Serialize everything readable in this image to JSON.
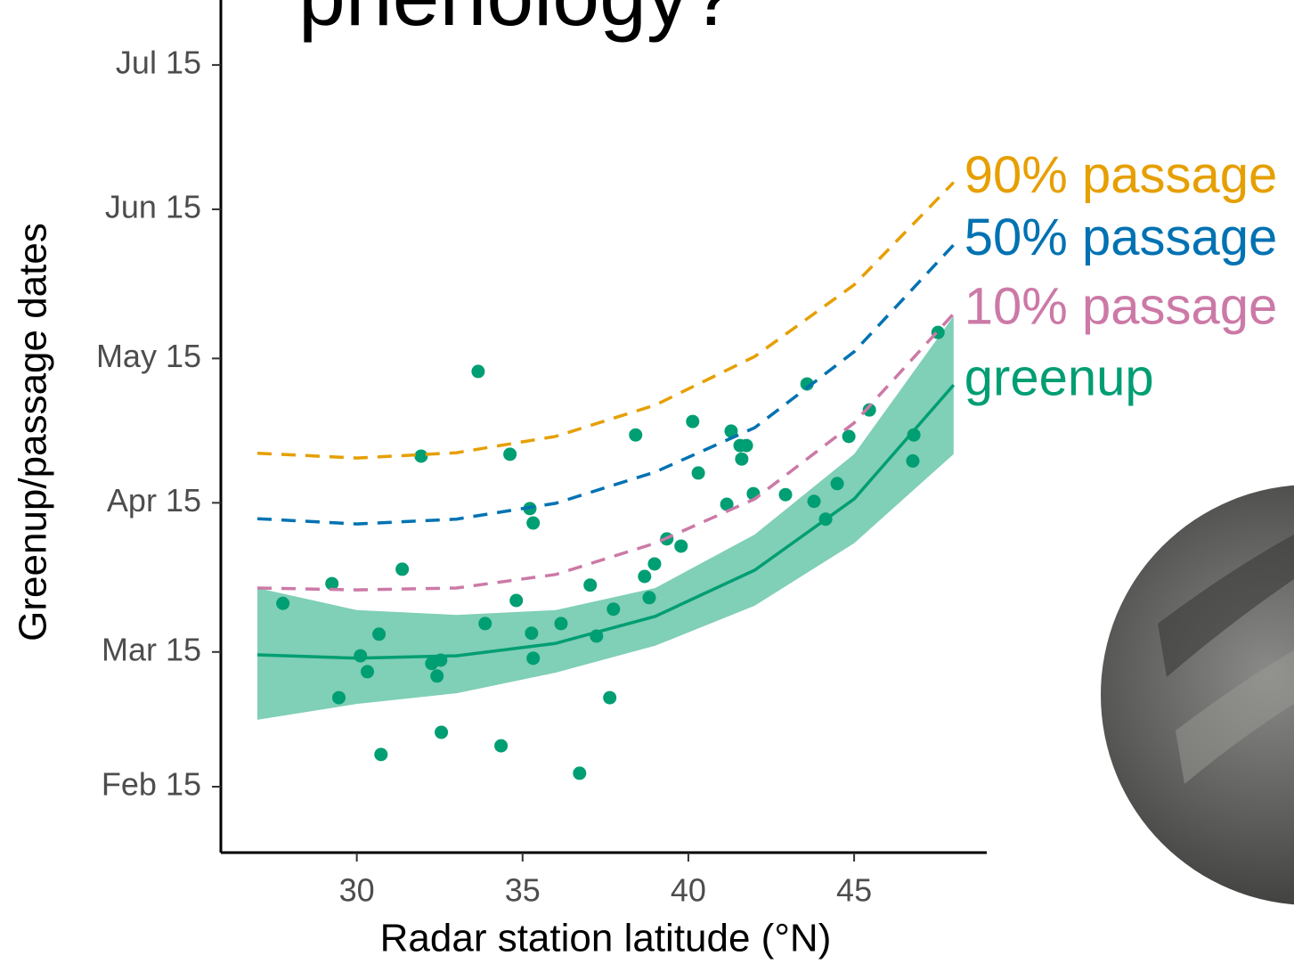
{
  "chart_data": {
    "type": "scatter",
    "title": "phenology?",
    "xlabel": "Radar station latitude (°N)",
    "ylabel": "Greenup/passage dates",
    "xlim": [
      25.9,
      49.0
    ],
    "ylim": [
      32.3,
      209.5
    ],
    "xticks": [
      30,
      35,
      40,
      45
    ],
    "yticks": [
      {
        "value": 46,
        "label": "Feb 15"
      },
      {
        "value": 74,
        "label": "Mar 15"
      },
      {
        "value": 105,
        "label": "Apr 15"
      },
      {
        "value": 135,
        "label": "May 15"
      },
      {
        "value": 166,
        "label": "Jun 15"
      },
      {
        "value": 196,
        "label": "Jul 15"
      }
    ],
    "points": {
      "color": "#009E73",
      "x": [
        27.77,
        29.25,
        29.46,
        30.11,
        30.32,
        30.67,
        30.73,
        31.37,
        31.94,
        32.26,
        32.42,
        32.53,
        32.55,
        33.66,
        33.87,
        34.35,
        34.62,
        34.81,
        35.22,
        35.32,
        35.27,
        35.32,
        36.16,
        36.72,
        37.04,
        37.23,
        37.63,
        37.74,
        38.41,
        38.68,
        38.82,
        38.98,
        39.35,
        39.78,
        40.13,
        40.3,
        41.16,
        41.29,
        41.56,
        41.75,
        41.61,
        41.96,
        42.93,
        43.58,
        43.79,
        44.14,
        44.49,
        44.84,
        45.46,
        46.8,
        46.77,
        47.53
      ],
      "y": [
        84.1,
        88.2,
        64.5,
        73.2,
        69.9,
        77.7,
        52.7,
        91.2,
        114.7,
        71.6,
        69.0,
        72.3,
        57.3,
        132.3,
        79.9,
        54.5,
        115.1,
        84.7,
        103.8,
        100.8,
        77.9,
        72.7,
        79.9,
        48.8,
        87.9,
        77.3,
        64.5,
        82.9,
        119.1,
        89.7,
        85.3,
        92.3,
        97.5,
        96.0,
        121.9,
        111.2,
        104.7,
        119.9,
        116.9,
        116.9,
        114.1,
        106.9,
        106.7,
        129.7,
        105.3,
        101.6,
        109.0,
        118.8,
        124.3,
        119.1,
        113.7,
        140.4
      ]
    },
    "x": [
      27,
      30,
      33,
      36,
      39,
      42,
      45,
      48
    ],
    "series": [
      {
        "name": "90% passage",
        "color": "#E69F00",
        "dashed": true,
        "values": [
          115.3,
          114.3,
          115.4,
          118.8,
          125.3,
          135.4,
          150.3,
          171.6
        ]
      },
      {
        "name": "50% passage",
        "color": "#0072B2",
        "dashed": true,
        "values": [
          101.7,
          100.6,
          101.6,
          104.9,
          111.4,
          120.6,
          136.4,
          158.6
        ]
      },
      {
        "name": "10% passage",
        "color": "#CC79A7",
        "dashed": true,
        "values": [
          87.3,
          86.9,
          87.3,
          90.1,
          96.6,
          105.8,
          121.6,
          144.3
        ]
      },
      {
        "name": "greenup",
        "color": "#009E73",
        "dashed": false,
        "band_color": "#80CFB7",
        "values": [
          73.4,
          72.7,
          73.2,
          75.8,
          81.4,
          91.0,
          105.8,
          129.5
        ],
        "band_upper": [
          87.3,
          82.7,
          81.7,
          82.7,
          87.3,
          98.4,
          115.1,
          143.8
        ],
        "band_lower": [
          59.9,
          63.2,
          65.4,
          69.7,
          75.3,
          83.6,
          96.6,
          115.1
        ]
      }
    ]
  }
}
